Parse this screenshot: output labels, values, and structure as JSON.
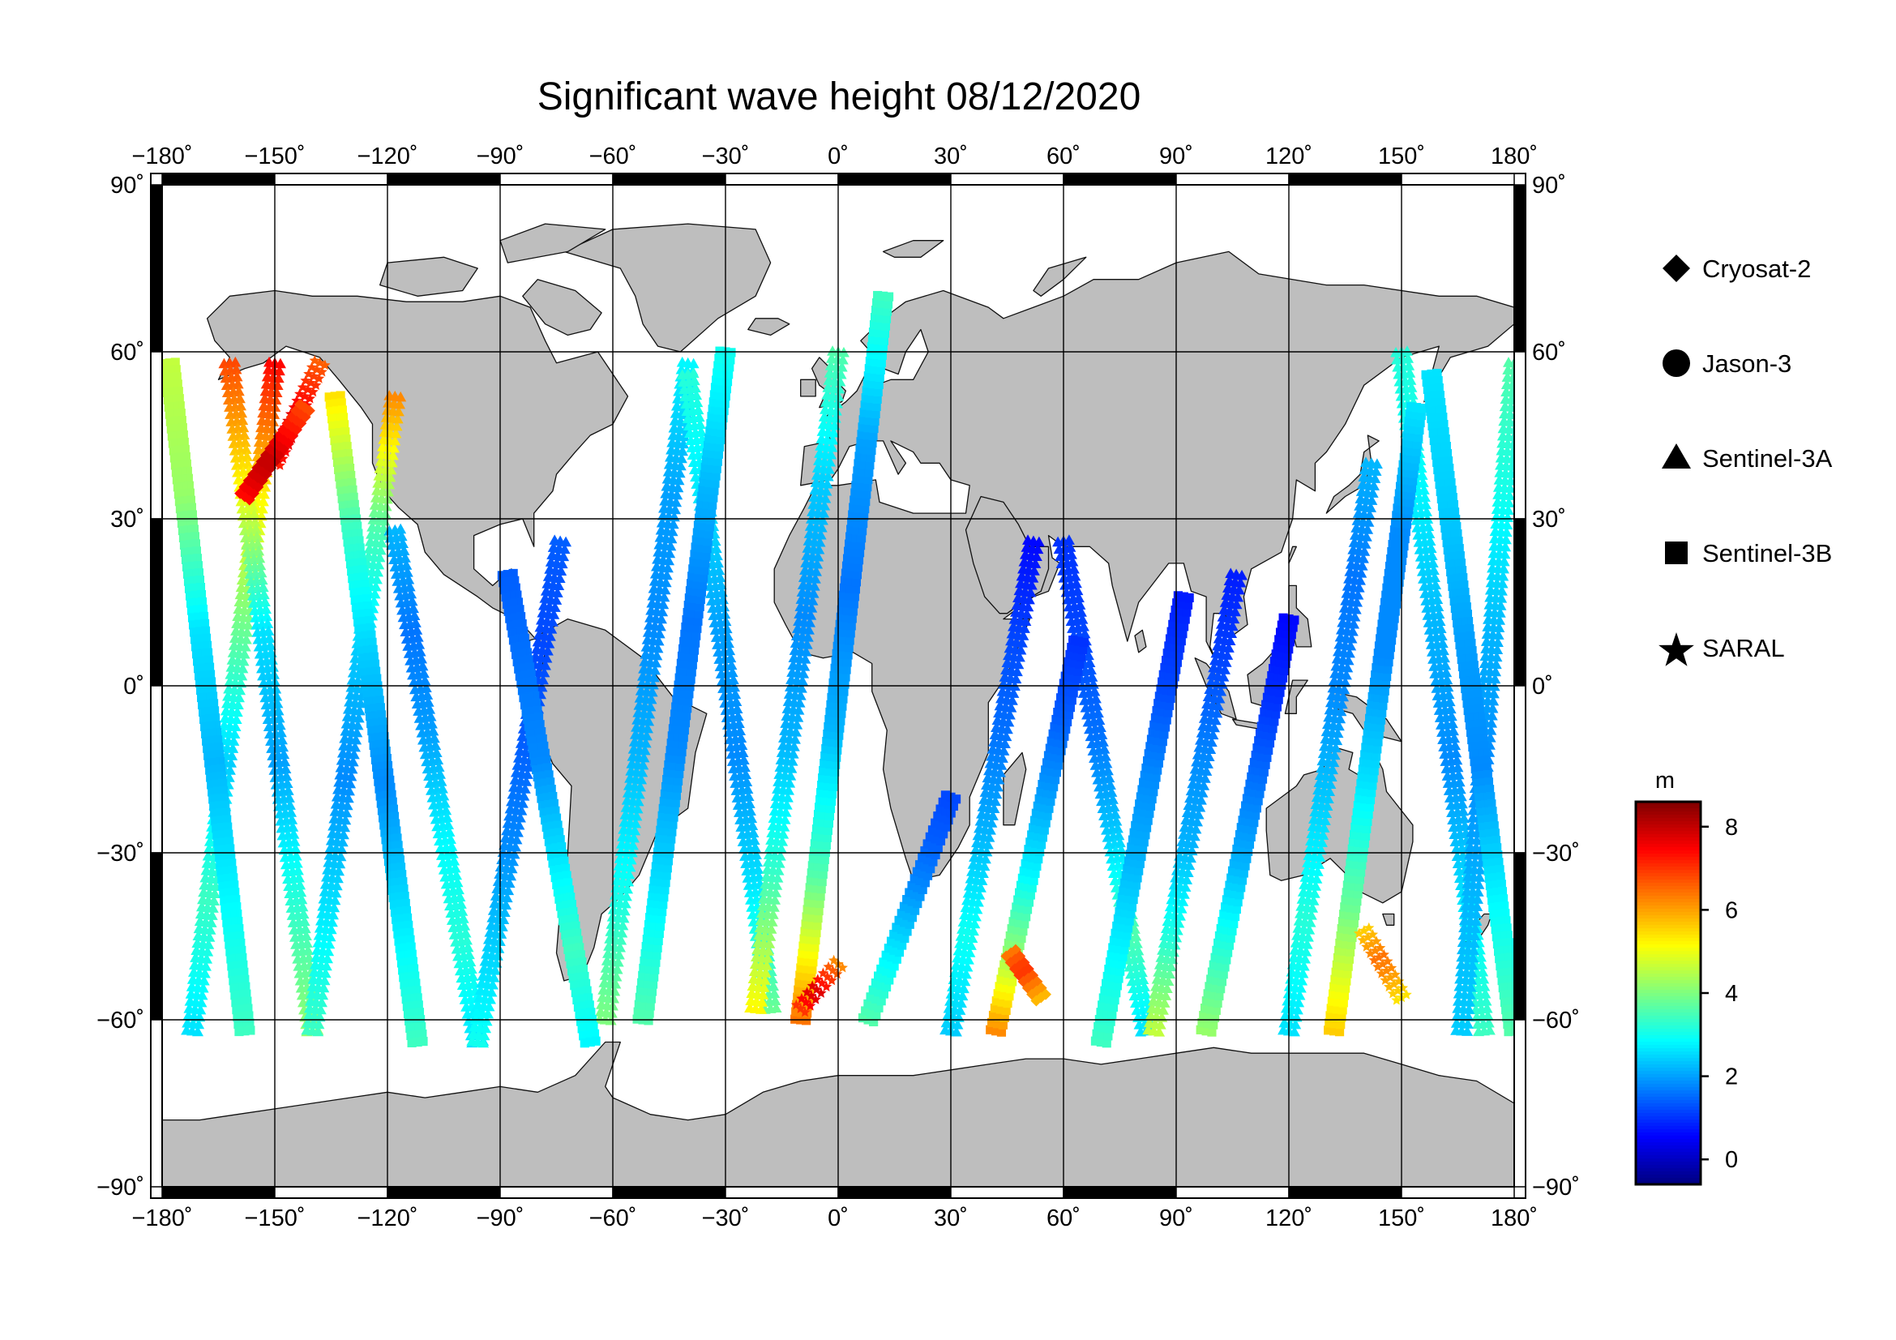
{
  "title": "Significant wave height 08/12/2020",
  "map": {
    "projection": "equirectangular",
    "lon_range": [
      -180,
      180
    ],
    "lat_range": [
      -90,
      90
    ],
    "lon_ticks": [
      "−180˚",
      "−150˚",
      "−120˚",
      "−90˚",
      "−60˚",
      "−30˚",
      "0˚",
      "30˚",
      "60˚",
      "90˚",
      "120˚",
      "150˚",
      "180˚"
    ],
    "lat_ticks": [
      "90˚",
      "60˚",
      "30˚",
      "0˚",
      "−30˚",
      "−60˚",
      "−90˚"
    ],
    "grid_spacing_deg": 30,
    "grid": true,
    "land_color": "#bebebe",
    "ocean_color": "#ffffff",
    "frame_style": "alternating black/white 30° bands"
  },
  "legend": {
    "placement": "right",
    "items": [
      {
        "label": "Cryosat-2",
        "marker": "diamond"
      },
      {
        "label": "Jason-3",
        "marker": "circle"
      },
      {
        "label": "Sentinel-3A",
        "marker": "triangle"
      },
      {
        "label": "Sentinel-3B",
        "marker": "square"
      },
      {
        "label": "SARAL",
        "marker": "star"
      }
    ]
  },
  "colorbar": {
    "unit": "m",
    "range": [
      -0.6,
      8.6
    ],
    "ticks": [
      "0",
      "2",
      "4",
      "6",
      "8"
    ],
    "colormap": "jet",
    "colors": [
      "#00007f",
      "#0000ff",
      "#007fff",
      "#00ffff",
      "#7fff7f",
      "#ffff00",
      "#ff7f00",
      "#ff0000",
      "#7f0000"
    ]
  },
  "chart_data": {
    "type": "scatter",
    "title": "Significant wave height 08/12/2020",
    "x_axis": {
      "label": "",
      "range": [
        -180,
        180
      ],
      "ticks": [
        -180,
        -150,
        -120,
        -90,
        -60,
        -30,
        0,
        30,
        60,
        90,
        120,
        150,
        180
      ]
    },
    "y_axis": {
      "label": "",
      "range": [
        -90,
        90
      ],
      "ticks": [
        90,
        60,
        30,
        0,
        -30,
        -60,
        -90
      ]
    },
    "color_variable": "significant wave height (m)",
    "grid": true,
    "legend_placement": "right",
    "series": [
      {
        "name": "Sentinel-3A",
        "marker": "triangle",
        "tracks": [
          {
            "lon": [
              -172,
              -150
            ],
            "lat": [
              -62,
              58
            ],
            "swh": [
              2.6,
              3.4,
              2.4,
              3.8,
              5.2,
              7.4
            ]
          },
          {
            "lon": [
              -162,
              -140
            ],
            "lat": [
              58,
              -62
            ],
            "swh": [
              6.8,
              5.0,
              2.6,
              2.0,
              3.2,
              4.2
            ]
          },
          {
            "lon": [
              -140,
              -118
            ],
            "lat": [
              -62,
              52
            ],
            "swh": [
              3.4,
              2.6,
              1.8,
              2.4,
              3.6,
              6.2
            ]
          },
          {
            "lon": [
              -118,
              -96
            ],
            "lat": [
              28,
              -64
            ],
            "swh": [
              2.2,
              1.6,
              2.0,
              2.8,
              3.2,
              2.6
            ]
          },
          {
            "lon": [
              -96,
              -74
            ],
            "lat": [
              -64,
              26
            ],
            "swh": [
              3.0,
              2.4,
              1.8,
              1.4,
              1.2,
              1.4
            ]
          },
          {
            "lon": [
              -62,
              -40
            ],
            "lat": [
              -60,
              58
            ],
            "swh": [
              4.0,
              3.0,
              2.2,
              1.8,
              2.0,
              2.8
            ]
          },
          {
            "lon": [
              -40,
              -18
            ],
            "lat": [
              56,
              -58
            ],
            "swh": [
              3.2,
              2.6,
              2.0,
              1.8,
              2.6,
              3.8
            ]
          },
          {
            "lon": [
              -22,
              0
            ],
            "lat": [
              -58,
              60
            ],
            "swh": [
              5.2,
              3.4,
              2.2,
              1.8,
              2.4,
              3.6
            ]
          },
          {
            "lon": [
              30,
              52
            ],
            "lat": [
              -62,
              26
            ],
            "swh": [
              2.4,
              3.0,
              2.2,
              1.6,
              1.2,
              0.6
            ]
          },
          {
            "lon": [
              60,
              82
            ],
            "lat": [
              26,
              -62
            ],
            "swh": [
              1.0,
              1.2,
              1.6,
              2.4,
              3.6,
              2.6
            ]
          },
          {
            "lon": [
              84,
              106
            ],
            "lat": [
              -62,
              20
            ],
            "swh": [
              4.6,
              3.2,
              2.2,
              1.8,
              1.2,
              0.8
            ]
          },
          {
            "lon": [
              120,
              142
            ],
            "lat": [
              -62,
              40
            ],
            "swh": [
              2.6,
              3.2,
              2.4,
              1.8,
              1.6,
              2.2
            ]
          },
          {
            "lon": [
              150,
              172
            ],
            "lat": [
              60,
              -62
            ],
            "swh": [
              3.2,
              2.8,
              2.2,
              1.8,
              2.6,
              3.4
            ]
          },
          {
            "lon": [
              166,
              180
            ],
            "lat": [
              -62,
              58
            ],
            "swh": [
              2.4,
              2.2,
              1.8,
              2.2,
              3.0,
              3.6
            ]
          }
        ]
      },
      {
        "name": "Sentinel-3B",
        "marker": "square",
        "tracks": [
          {
            "lon": [
              -178,
              -158
            ],
            "lat": [
              58,
              -62
            ],
            "swh": [
              4.6,
              4.2,
              2.6,
              2.2,
              2.8,
              3.4
            ]
          },
          {
            "lon": [
              -134,
              -112
            ],
            "lat": [
              52,
              -64
            ],
            "swh": [
              5.4,
              3.4,
              2.4,
              1.8,
              2.6,
              3.4
            ]
          },
          {
            "lon": [
              -88,
              -66
            ],
            "lat": [
              20,
              -64
            ],
            "swh": [
              1.4,
              1.6,
              1.8,
              2.6,
              3.4,
              2.8
            ]
          },
          {
            "lon": [
              -52,
              -30
            ],
            "lat": [
              -60,
              60
            ],
            "swh": [
              3.6,
              2.6,
              1.8,
              1.6,
              2.2,
              3.0
            ]
          },
          {
            "lon": [
              -10,
              12
            ],
            "lat": [
              -60,
              70
            ],
            "swh": [
              6.4,
              3.6,
              2.2,
              1.6,
              2.0,
              3.4
            ]
          },
          {
            "lon": [
              8,
              30
            ],
            "lat": [
              -60,
              -20
            ],
            "swh": [
              3.6,
              3.0,
              2.4,
              1.8,
              1.4,
              1.2
            ]
          },
          {
            "lon": [
              42,
              64
            ],
            "lat": [
              -62,
              8
            ],
            "swh": [
              6.2,
              4.2,
              2.8,
              2.0,
              1.4,
              1.0
            ]
          },
          {
            "lon": [
              70,
              92
            ],
            "lat": [
              -64,
              16
            ],
            "swh": [
              3.4,
              2.8,
              2.2,
              1.8,
              1.2,
              0.8
            ]
          },
          {
            "lon": [
              98,
              120
            ],
            "lat": [
              -62,
              12
            ],
            "swh": [
              4.2,
              3.2,
              2.2,
              1.6,
              1.0,
              0.6
            ]
          },
          {
            "lon": [
              132,
              154
            ],
            "lat": [
              -62,
              50
            ],
            "swh": [
              5.6,
              3.8,
              2.6,
              1.8,
              1.8,
              2.6
            ]
          },
          {
            "lon": [
              158,
              180
            ],
            "lat": [
              56,
              -62
            ],
            "swh": [
              2.6,
              2.4,
              2.0,
              1.8,
              2.8,
              3.6
            ]
          }
        ]
      },
      {
        "name": "SARAL",
        "marker": "star",
        "tracks": [
          {
            "lon": [
              -150,
              -138
            ],
            "lat": [
              40,
              58
            ],
            "swh": [
              7.2,
              7.6,
              7.8,
              7.4,
              7.0,
              6.6
            ]
          },
          {
            "lon": [
              -10,
              0
            ],
            "lat": [
              -58,
              -50
            ],
            "swh": [
              7.0,
              7.6,
              7.8,
              7.2,
              6.8,
              6.2
            ]
          },
          {
            "lon": [
              140,
              150
            ],
            "lat": [
              -44,
              -56
            ],
            "swh": [
              5.6,
              6.0,
              6.4,
              6.2,
              5.8,
              5.4
            ]
          }
        ]
      },
      {
        "name": "Cryosat-2",
        "marker": "diamond",
        "tracks": [
          {
            "lon": [
              -158,
              -142
            ],
            "lat": [
              34,
              50
            ],
            "swh": [
              7.4,
              7.8,
              8.0,
              7.6,
              7.2,
              6.8
            ]
          },
          {
            "lon": [
              46,
              54
            ],
            "lat": [
              -48,
              -56
            ],
            "swh": [
              6.4,
              6.8,
              7.0,
              6.6,
              6.2,
              5.8
            ]
          }
        ]
      },
      {
        "name": "Jason-3",
        "marker": "circle",
        "tracks": []
      }
    ]
  }
}
